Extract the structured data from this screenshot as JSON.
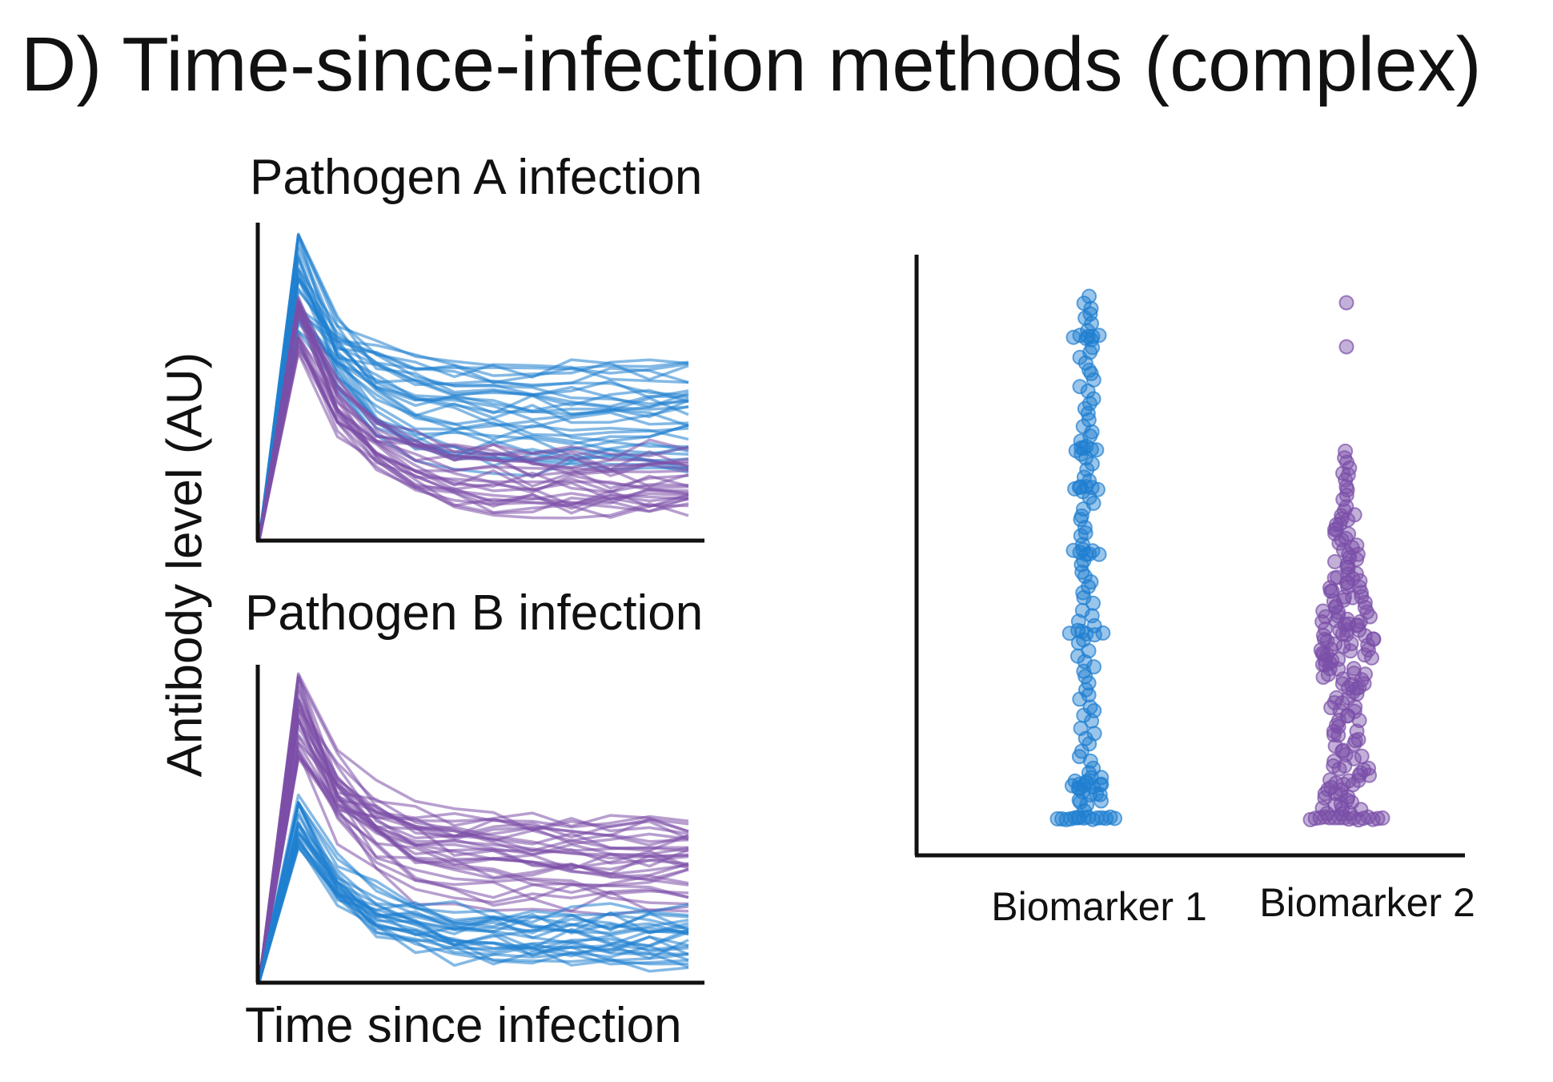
{
  "figure": {
    "panel_title": "D) Time-since-infection methods (complex)"
  },
  "colors": {
    "pathogen_a": "#1f7fd0",
    "pathogen_b": "#7b4fa8",
    "axis": "#111111"
  },
  "chart_data": [
    {
      "type": "line",
      "title": "Pathogen A infection",
      "xlabel": "",
      "ylabel": "Antibody level (AU)",
      "x": [
        0,
        1,
        2,
        3,
        4,
        5,
        6,
        7,
        8,
        9,
        10,
        11
      ],
      "grid": false,
      "series_groups": [
        {
          "color_key": "pathogen_a",
          "count": 32,
          "peak_range": [
            0.62,
            0.98
          ],
          "plateau_range": [
            0.22,
            0.58
          ]
        },
        {
          "color_key": "pathogen_b",
          "count": 26,
          "peak_range": [
            0.58,
            0.78
          ],
          "plateau_range": [
            0.08,
            0.3
          ]
        }
      ]
    },
    {
      "type": "line",
      "title": "Pathogen B infection",
      "xlabel": "Time since infection",
      "ylabel": "",
      "x": [
        0,
        1,
        2,
        3,
        4,
        5,
        6,
        7,
        8,
        9,
        10,
        11
      ],
      "grid": false,
      "series_groups": [
        {
          "color_key": "pathogen_b",
          "count": 32,
          "peak_range": [
            0.7,
            0.99
          ],
          "plateau_range": [
            0.2,
            0.52
          ]
        },
        {
          "color_key": "pathogen_a",
          "count": 26,
          "peak_range": [
            0.42,
            0.6
          ],
          "plateau_range": [
            0.06,
            0.22
          ]
        }
      ]
    },
    {
      "type": "scatter",
      "title": "",
      "xlabel": "",
      "ylabel": "",
      "categories": [
        "Biomarker 1",
        "Biomarker 2"
      ],
      "grid": false,
      "groups": [
        {
          "category": "Biomarker 1",
          "color_key": "pathogen_a",
          "value_range": [
            0.04,
            0.88
          ],
          "mode": "uniform"
        },
        {
          "category": "Biomarker 2",
          "color_key": "pathogen_b",
          "value_range": [
            0.04,
            0.86
          ],
          "mode": "skewed"
        }
      ]
    }
  ]
}
